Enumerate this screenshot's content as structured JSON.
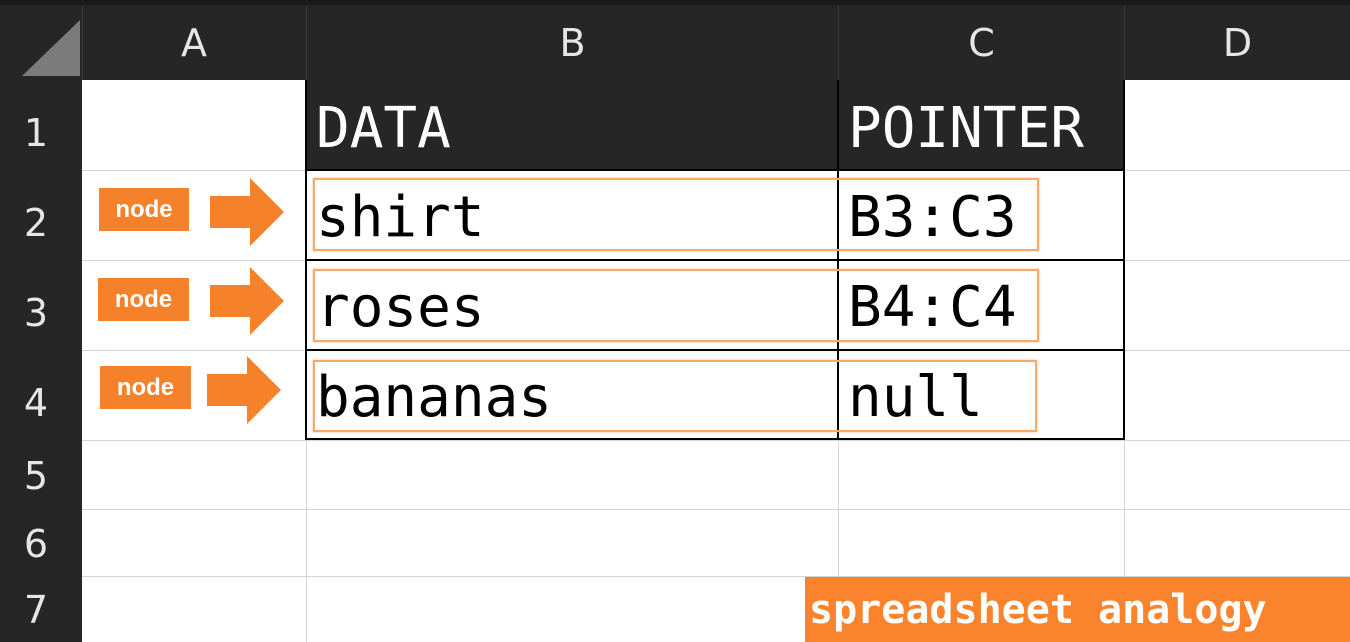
{
  "columns": [
    "A",
    "B",
    "C",
    "D"
  ],
  "rows": [
    "1",
    "2",
    "3",
    "4",
    "5",
    "6",
    "7"
  ],
  "table": {
    "headers": [
      "DATA",
      "POINTER"
    ],
    "records": [
      {
        "data": "shirt",
        "pointer": "B3:C3"
      },
      {
        "data": "roses",
        "pointer": "B4:C4"
      },
      {
        "data": "bananas",
        "pointer": "null"
      }
    ]
  },
  "node_label": "node",
  "caption": "spreadsheet analogy",
  "icons": {
    "corner": "select-all-triangle",
    "arrow": "right-arrow-icon"
  },
  "colors": {
    "accent": "#f5812a",
    "header_bg": "#262626",
    "highlight": "#f7a96a"
  }
}
